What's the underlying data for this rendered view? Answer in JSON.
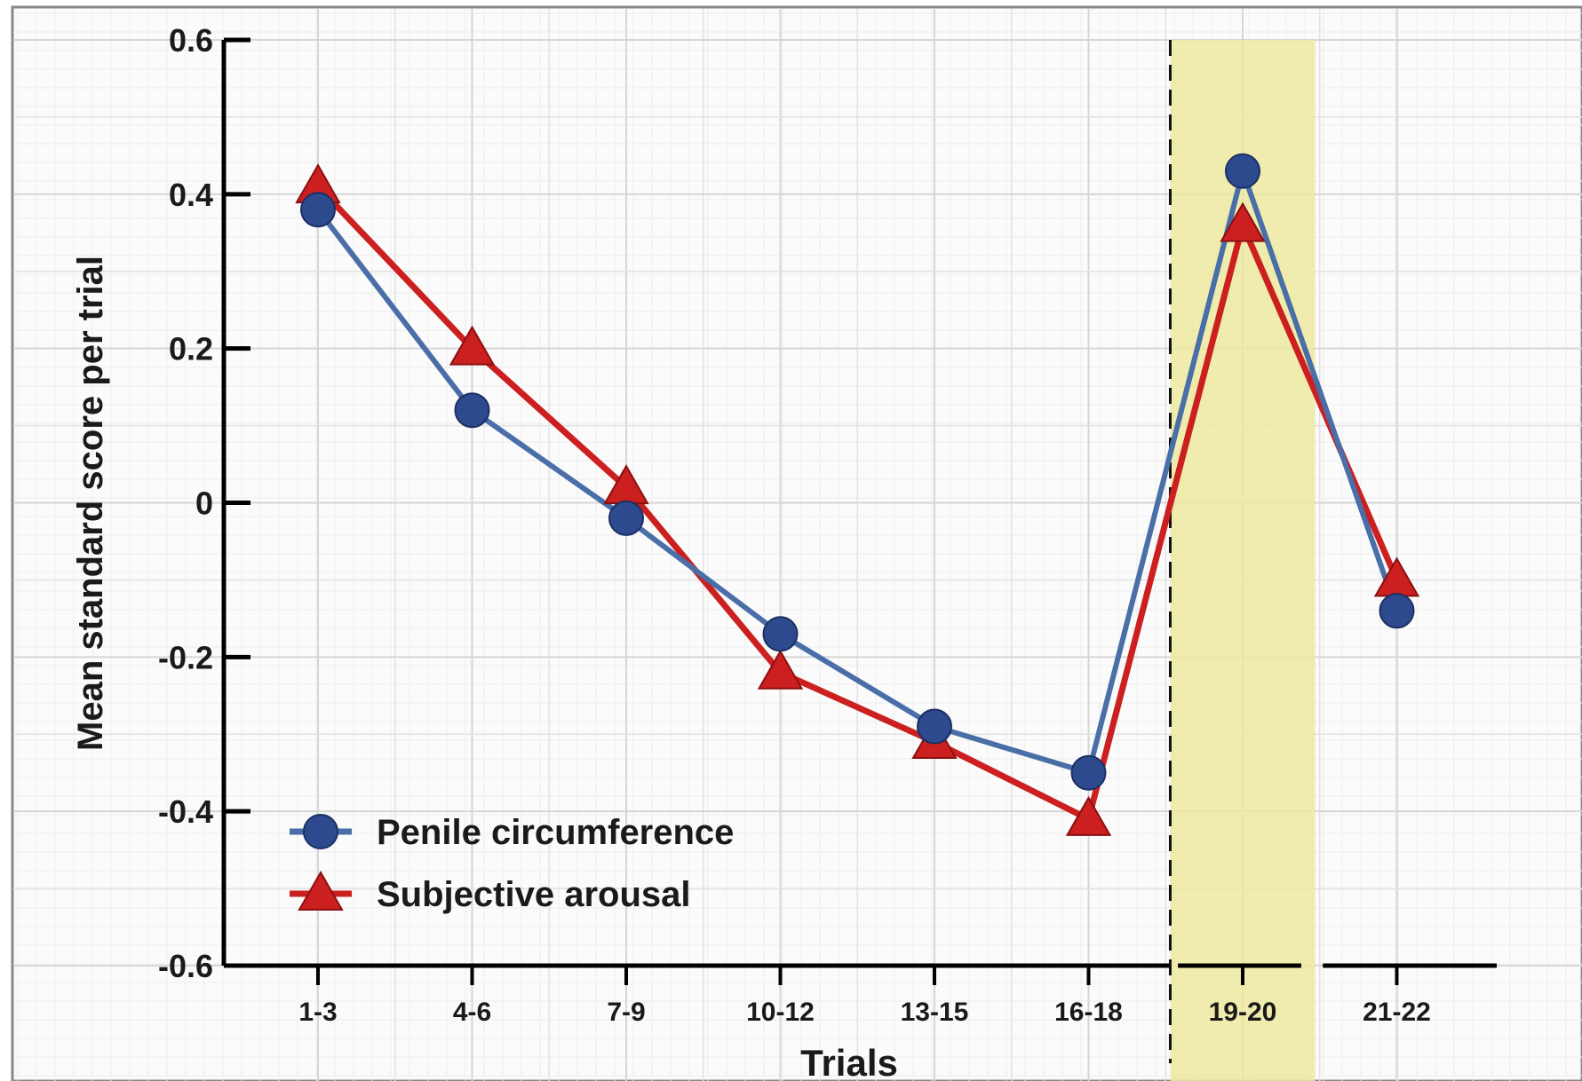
{
  "chart_data": {
    "type": "line",
    "xlabel": "Trials",
    "ylabel": "Mean standard score per trial",
    "categories": [
      "1-3",
      "4-6",
      "7-9",
      "10-12",
      "13-15",
      "16-18",
      "19-20",
      "21-22"
    ],
    "ylim": [
      -0.6,
      0.6
    ],
    "yticks": [
      -0.6,
      -0.4,
      -0.2,
      0,
      0.2,
      0.4,
      0.6
    ],
    "ytick_labels": [
      "-0.6",
      "-0.4",
      "-0.2",
      "0",
      "0.2",
      "0.4",
      "0.6"
    ],
    "grid": true,
    "highlight_category": "19-20",
    "highlight_color": "#ede9a0",
    "legend_position": "bottom-left",
    "series": [
      {
        "name": "Penile circumference",
        "marker": "circle",
        "color": "#2e4a8f",
        "line_color": "#4a6fa8",
        "values": [
          0.38,
          0.12,
          -0.02,
          -0.17,
          -0.29,
          -0.35,
          0.43,
          -0.14
        ]
      },
      {
        "name": "Subjective arousal",
        "marker": "triangle",
        "color": "#cc1f1f",
        "line_color": "#cc1f1f",
        "values": [
          0.41,
          0.2,
          0.02,
          -0.22,
          -0.31,
          -0.41,
          0.36,
          -0.1
        ]
      }
    ]
  }
}
